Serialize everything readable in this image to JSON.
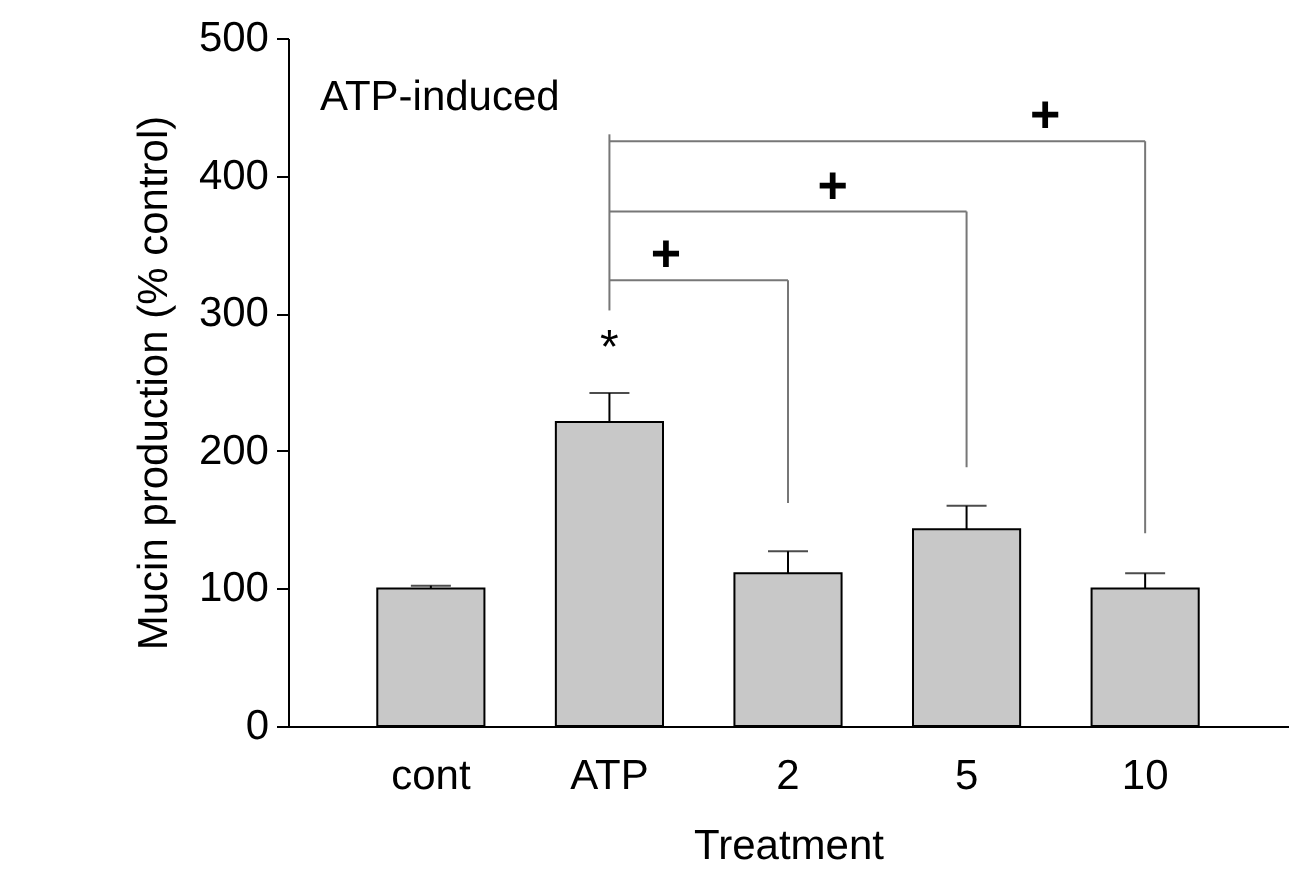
{
  "chart_data": {
    "type": "bar",
    "xlabel": "Treatment",
    "ylabel": "Mucin production (% control)",
    "categories": [
      "cont",
      "ATP",
      "2",
      "5",
      "10"
    ],
    "values": [
      100,
      221,
      111,
      143,
      100
    ],
    "errors": [
      2,
      21,
      16,
      17,
      11
    ],
    "color": "#c8c8c8",
    "ylim": [
      0,
      500
    ],
    "yticks": [
      0,
      100,
      200,
      300,
      400,
      500
    ],
    "annotations": [
      "ATP-induced",
      "*",
      "+",
      "+",
      "+"
    ]
  }
}
